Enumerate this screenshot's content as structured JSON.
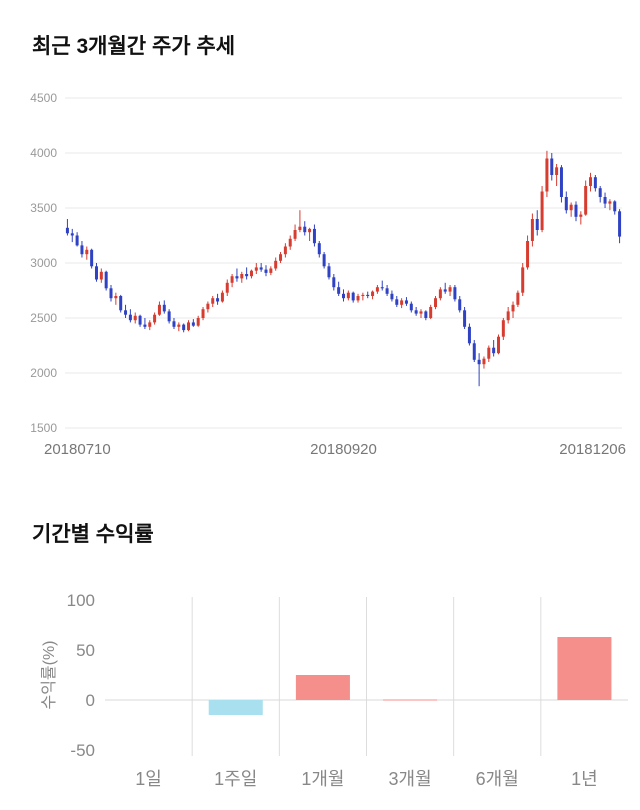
{
  "page": {
    "background": "#ffffff"
  },
  "chart_data": [
    {
      "type": "candlestick",
      "title": "최근 3개월간 주가 추세",
      "ylim": [
        1500,
        4500
      ],
      "yticks": [
        4500,
        4000,
        3500,
        3000,
        2500,
        2000,
        1500
      ],
      "xticks": [
        "20180710",
        "20180920",
        "20181206"
      ],
      "grid": "horizontal",
      "legend": "none",
      "up_color": "#d73c30",
      "down_color": "#2f42c3",
      "axis_text_color": "#999999",
      "candles_ohlc": [
        [
          3320,
          3400,
          3250,
          3270
        ],
        [
          3270,
          3310,
          3190,
          3250
        ],
        [
          3250,
          3280,
          3150,
          3160
        ],
        [
          3160,
          3200,
          3050,
          3080
        ],
        [
          3080,
          3150,
          3030,
          3120
        ],
        [
          3120,
          3130,
          2950,
          2970
        ],
        [
          2970,
          3000,
          2830,
          2850
        ],
        [
          2850,
          2950,
          2820,
          2920
        ],
        [
          2920,
          2930,
          2750,
          2770
        ],
        [
          2770,
          2800,
          2650,
          2680
        ],
        [
          2680,
          2730,
          2620,
          2700
        ],
        [
          2700,
          2710,
          2550,
          2570
        ],
        [
          2570,
          2620,
          2500,
          2530
        ],
        [
          2530,
          2580,
          2460,
          2480
        ],
        [
          2480,
          2550,
          2450,
          2520
        ],
        [
          2520,
          2530,
          2420,
          2440
        ],
        [
          2440,
          2500,
          2400,
          2420
        ],
        [
          2420,
          2480,
          2390,
          2460
        ],
        [
          2460,
          2550,
          2440,
          2530
        ],
        [
          2530,
          2650,
          2520,
          2620
        ],
        [
          2620,
          2660,
          2540,
          2560
        ],
        [
          2560,
          2580,
          2450,
          2470
        ],
        [
          2470,
          2500,
          2400,
          2420
        ],
        [
          2420,
          2460,
          2380,
          2440
        ],
        [
          2440,
          2450,
          2370,
          2390
        ],
        [
          2390,
          2480,
          2380,
          2460
        ],
        [
          2460,
          2490,
          2420,
          2430
        ],
        [
          2430,
          2520,
          2420,
          2500
        ],
        [
          2500,
          2600,
          2480,
          2580
        ],
        [
          2580,
          2650,
          2550,
          2630
        ],
        [
          2630,
          2700,
          2600,
          2680
        ],
        [
          2680,
          2720,
          2620,
          2650
        ],
        [
          2650,
          2750,
          2640,
          2730
        ],
        [
          2730,
          2850,
          2700,
          2820
        ],
        [
          2820,
          2900,
          2780,
          2880
        ],
        [
          2880,
          2950,
          2830,
          2860
        ],
        [
          2860,
          2920,
          2820,
          2900
        ],
        [
          2900,
          2960,
          2850,
          2880
        ],
        [
          2880,
          2940,
          2860,
          2930
        ],
        [
          2930,
          3000,
          2900,
          2960
        ],
        [
          2960,
          3000,
          2920,
          2940
        ],
        [
          2940,
          2980,
          2880,
          2910
        ],
        [
          2910,
          2970,
          2890,
          2950
        ],
        [
          2950,
          3050,
          2930,
          3020
        ],
        [
          3020,
          3100,
          3000,
          3080
        ],
        [
          3080,
          3180,
          3050,
          3150
        ],
        [
          3150,
          3250,
          3120,
          3220
        ],
        [
          3220,
          3350,
          3200,
          3300
        ],
        [
          3300,
          3480,
          3280,
          3330
        ],
        [
          3330,
          3380,
          3250,
          3280
        ],
        [
          3280,
          3320,
          3200,
          3310
        ],
        [
          3310,
          3350,
          3150,
          3180
        ],
        [
          3180,
          3200,
          3050,
          3080
        ],
        [
          3080,
          3100,
          2950,
          2970
        ],
        [
          2970,
          3000,
          2850,
          2870
        ],
        [
          2870,
          2900,
          2750,
          2780
        ],
        [
          2780,
          2830,
          2700,
          2720
        ],
        [
          2720,
          2760,
          2650,
          2680
        ],
        [
          2680,
          2750,
          2660,
          2730
        ],
        [
          2730,
          2740,
          2640,
          2660
        ],
        [
          2660,
          2720,
          2640,
          2700
        ],
        [
          2700,
          2730,
          2660,
          2710
        ],
        [
          2710,
          2740,
          2680,
          2700
        ],
        [
          2700,
          2750,
          2670,
          2740
        ],
        [
          2740,
          2800,
          2720,
          2780
        ],
        [
          2780,
          2840,
          2750,
          2770
        ],
        [
          2770,
          2800,
          2700,
          2720
        ],
        [
          2720,
          2750,
          2650,
          2670
        ],
        [
          2670,
          2700,
          2600,
          2620
        ],
        [
          2620,
          2680,
          2590,
          2660
        ],
        [
          2660,
          2690,
          2610,
          2630
        ],
        [
          2630,
          2650,
          2550,
          2570
        ],
        [
          2570,
          2600,
          2520,
          2540
        ],
        [
          2540,
          2580,
          2500,
          2560
        ],
        [
          2560,
          2570,
          2480,
          2500
        ],
        [
          2500,
          2620,
          2490,
          2600
        ],
        [
          2600,
          2700,
          2580,
          2680
        ],
        [
          2680,
          2780,
          2660,
          2760
        ],
        [
          2760,
          2820,
          2720,
          2740
        ],
        [
          2740,
          2800,
          2700,
          2780
        ],
        [
          2780,
          2800,
          2650,
          2670
        ],
        [
          2670,
          2700,
          2550,
          2570
        ],
        [
          2570,
          2600,
          2400,
          2420
        ],
        [
          2420,
          2450,
          2250,
          2270
        ],
        [
          2270,
          2300,
          2100,
          2120
        ],
        [
          2120,
          2180,
          1880,
          2080
        ],
        [
          2080,
          2150,
          2040,
          2130
        ],
        [
          2130,
          2250,
          2100,
          2230
        ],
        [
          2230,
          2300,
          2150,
          2180
        ],
        [
          2180,
          2350,
          2170,
          2330
        ],
        [
          2330,
          2500,
          2300,
          2480
        ],
        [
          2480,
          2600,
          2450,
          2560
        ],
        [
          2560,
          2650,
          2500,
          2620
        ],
        [
          2620,
          2750,
          2600,
          2730
        ],
        [
          2730,
          3000,
          2700,
          2960
        ],
        [
          2960,
          3250,
          2940,
          3200
        ],
        [
          3200,
          3450,
          3150,
          3400
        ],
        [
          3400,
          3480,
          3250,
          3300
        ],
        [
          3300,
          3700,
          3280,
          3650
        ],
        [
          3650,
          4020,
          3600,
          3950
        ],
        [
          3950,
          4000,
          3750,
          3800
        ],
        [
          3800,
          3900,
          3700,
          3870
        ],
        [
          3870,
          3890,
          3550,
          3600
        ],
        [
          3600,
          3650,
          3450,
          3480
        ],
        [
          3480,
          3550,
          3420,
          3530
        ],
        [
          3530,
          3560,
          3380,
          3420
        ],
        [
          3420,
          3470,
          3350,
          3440
        ],
        [
          3440,
          3750,
          3430,
          3700
        ],
        [
          3700,
          3820,
          3650,
          3780
        ],
        [
          3780,
          3800,
          3650,
          3680
        ],
        [
          3680,
          3700,
          3550,
          3600
        ],
        [
          3600,
          3640,
          3500,
          3540
        ],
        [
          3540,
          3580,
          3480,
          3560
        ],
        [
          3560,
          3570,
          3440,
          3470
        ],
        [
          3470,
          3490,
          3180,
          3240
        ]
      ]
    },
    {
      "type": "bar",
      "title": "기간별 수익률",
      "ylabel": "수익률(%)",
      "categories": [
        "1일",
        "1주일",
        "1개월",
        "3개월",
        "6개월",
        "1년"
      ],
      "values": [
        0,
        -15,
        25,
        0.5,
        0,
        63
      ],
      "ylim": [
        -50,
        100
      ],
      "yticks": [
        100,
        50,
        0,
        -50
      ],
      "grid": "vertical-separators",
      "legend": "none",
      "positive_color": "#f58f8c",
      "negative_color": "#a8e0ef",
      "axis_text_color": "#888888"
    }
  ]
}
